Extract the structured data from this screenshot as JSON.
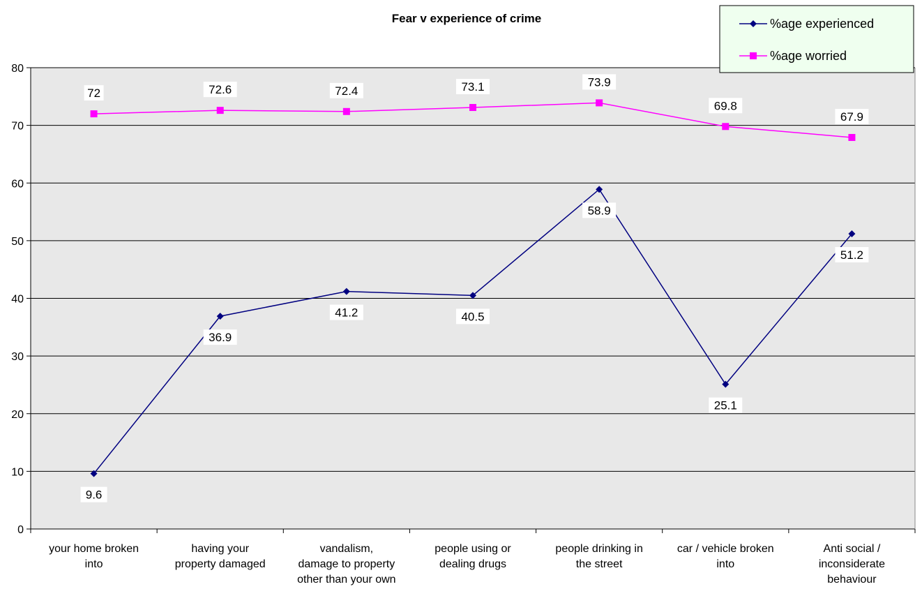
{
  "chart_data": {
    "type": "line",
    "title": "Fear v experience of crime",
    "categories": [
      [
        "your home broken",
        "into"
      ],
      [
        "having your",
        "property damaged"
      ],
      [
        "vandalism,",
        "damage to property",
        "other than your own"
      ],
      [
        "people using or",
        "dealing drugs"
      ],
      [
        "people drinking in",
        "the street"
      ],
      [
        "car / vehicle broken",
        "into"
      ],
      [
        "Anti social /",
        "inconsiderate",
        "behaviour"
      ]
    ],
    "ylim": [
      0,
      80
    ],
    "yticks": [
      0,
      10,
      20,
      30,
      40,
      50,
      60,
      70,
      80
    ],
    "grid": true,
    "legend_position": "top-right",
    "series": [
      {
        "name": "%age experienced",
        "color": "#000080",
        "marker": "diamond",
        "values": [
          9.6,
          36.9,
          41.2,
          40.5,
          58.9,
          25.1,
          51.2
        ],
        "labels": [
          "9.6",
          "36.9",
          "41.2",
          "40.5",
          "58.9",
          "25.1",
          "51.2"
        ]
      },
      {
        "name": "%age worried",
        "color": "#FF00FF",
        "marker": "square",
        "values": [
          72,
          72.6,
          72.4,
          73.1,
          73.9,
          69.8,
          67.9
        ],
        "labels": [
          "72",
          "72.6",
          "72.4",
          "73.1",
          "73.9",
          "69.8",
          "67.9"
        ]
      }
    ],
    "colors": {
      "plot_background": "#E8E8E8",
      "legend_background": "#EFFFEF"
    }
  }
}
